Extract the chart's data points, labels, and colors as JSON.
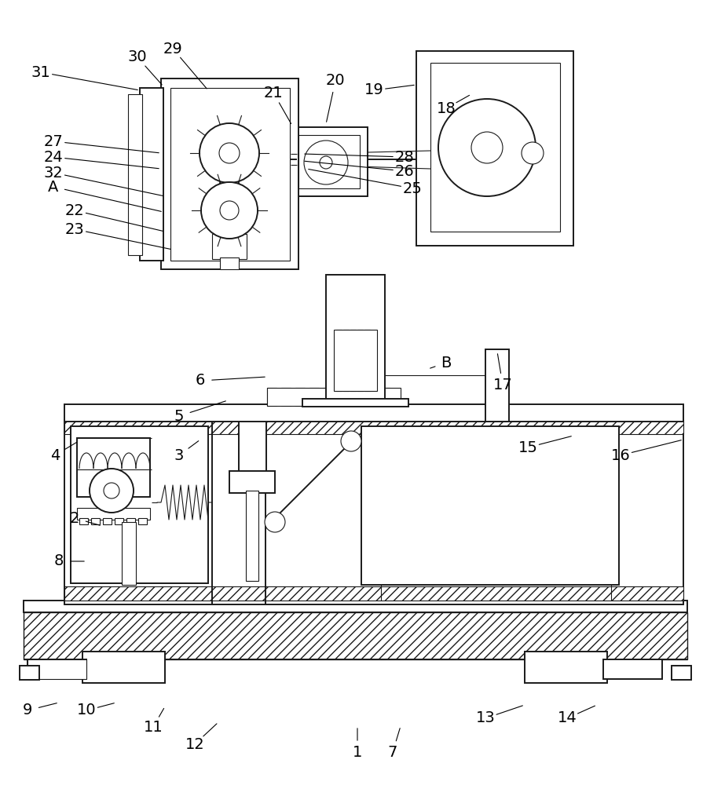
{
  "bg": "#ffffff",
  "lc": "#1a1a1a",
  "lw": 1.4,
  "lwt": 0.8,
  "fs": 14,
  "figw": 9.09,
  "figh": 10.0,
  "dpi": 100
}
